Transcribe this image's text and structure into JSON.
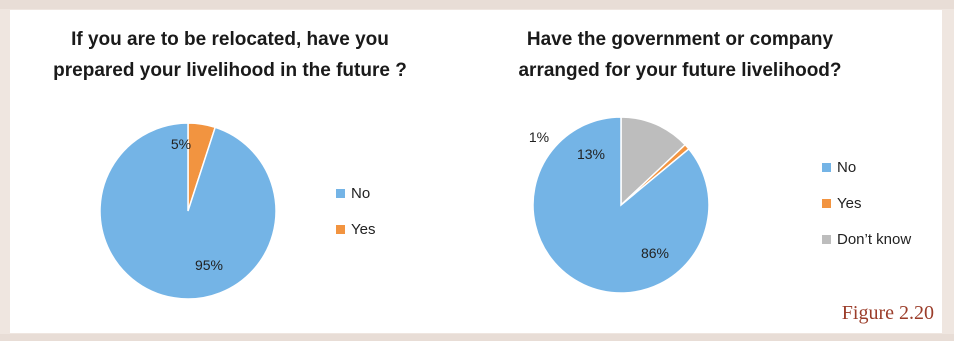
{
  "figure_caption": "Figure 2.20",
  "colors": {
    "no": "#74b4e6",
    "yes": "#f29440",
    "dont_know": "#bdbdbd"
  },
  "chart_data": [
    {
      "type": "pie",
      "title_lines": [
        "If you are to be relocated, have you",
        "prepared your livelihood in the future ?"
      ],
      "legend_placement": "right",
      "slices": [
        {
          "label": "No",
          "value": 95,
          "display": "95%",
          "color": "#74b4e6"
        },
        {
          "label": "Yes",
          "value": 5,
          "display": "5%",
          "color": "#f29440"
        }
      ]
    },
    {
      "type": "pie",
      "title_lines": [
        "Have the government or company",
        "arranged for your future livelihood?"
      ],
      "legend_placement": "right",
      "slices": [
        {
          "label": "No",
          "value": 86,
          "display": "86%",
          "color": "#74b4e6"
        },
        {
          "label": "Yes",
          "value": 1,
          "display": "1%",
          "color": "#f29440"
        },
        {
          "label": "Don’t know",
          "value": 13,
          "display": "13%",
          "color": "#bdbdbd"
        }
      ]
    }
  ]
}
